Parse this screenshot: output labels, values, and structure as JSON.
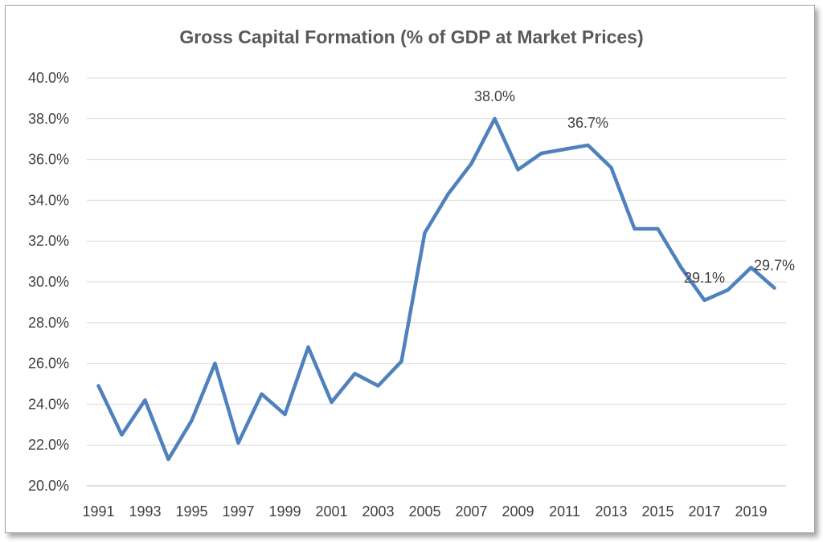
{
  "chart_data": {
    "type": "line",
    "title": "Gross Capital Formation (% of GDP at Market Prices)",
    "xlabel": "",
    "ylabel": "",
    "ylim": [
      20,
      40
    ],
    "ytick_step": 2,
    "ytick_labels": [
      "20.0%",
      "22.0%",
      "24.0%",
      "26.0%",
      "28.0%",
      "30.0%",
      "32.0%",
      "34.0%",
      "36.0%",
      "38.0%",
      "40.0%"
    ],
    "xtick_labels": [
      "1991",
      "1993",
      "1995",
      "1997",
      "1999",
      "2001",
      "2003",
      "2005",
      "2007",
      "2009",
      "2011",
      "2013",
      "2015",
      "2017",
      "2019"
    ],
    "grid": true,
    "legend": "none",
    "line_color": "#4f81bd",
    "series": [
      {
        "x": [
          1991,
          1992,
          1993,
          1994,
          1995,
          1996,
          1997,
          1998,
          1999,
          2000,
          2001,
          2002,
          2003,
          2004,
          2005,
          2006,
          2007,
          2008,
          2009,
          2010,
          2011,
          2012,
          2013,
          2014,
          2015,
          2016,
          2017,
          2018,
          2019,
          2020
        ],
        "values": [
          24.9,
          22.5,
          24.2,
          21.3,
          23.2,
          26.0,
          22.1,
          24.5,
          23.5,
          26.8,
          24.1,
          25.5,
          24.9,
          26.1,
          32.4,
          34.3,
          35.8,
          38.0,
          35.5,
          36.3,
          36.5,
          36.7,
          35.6,
          32.6,
          32.6,
          30.7,
          29.1,
          29.6,
          30.7,
          29.7
        ]
      }
    ],
    "data_labels": [
      {
        "x": 2008,
        "text": "38.0%"
      },
      {
        "x": 2012,
        "text": "36.7%"
      },
      {
        "x": 2017,
        "text": "29.1%"
      },
      {
        "x": 2020,
        "text": "29.7%"
      }
    ]
  }
}
